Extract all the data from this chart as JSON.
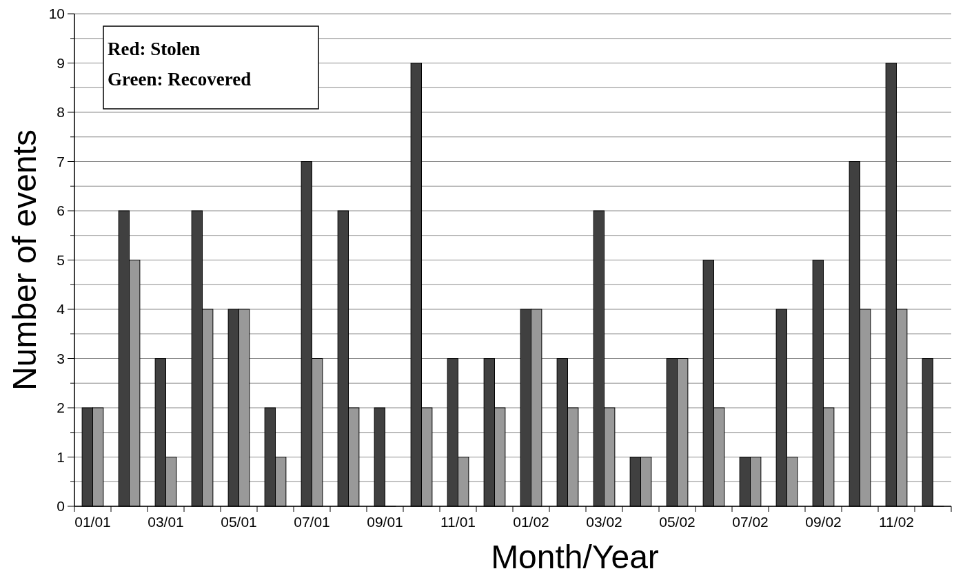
{
  "chart_data": {
    "type": "bar",
    "xlabel": "Month/Year",
    "ylabel": "Number of events",
    "categories": [
      "01/01",
      null,
      "03/01",
      null,
      "05/01",
      null,
      "07/01",
      null,
      "09/01",
      null,
      "11/01",
      null,
      "01/02",
      null,
      "03/02",
      null,
      "05/02",
      null,
      "07/02",
      null,
      "09/02",
      null,
      "11/02",
      null
    ],
    "series": [
      {
        "color": "#404040",
        "values": [
          2,
          6,
          3,
          6,
          4,
          2,
          7,
          6,
          2,
          9,
          3,
          3,
          4,
          3,
          6,
          1,
          3,
          5,
          1,
          4,
          5,
          7,
          9,
          3
        ]
      },
      {
        "color": "#999999",
        "values": [
          2,
          5,
          1,
          4,
          4,
          1,
          3,
          2,
          0,
          2,
          1,
          2,
          4,
          2,
          2,
          1,
          3,
          2,
          1,
          1,
          2,
          4,
          4,
          0
        ]
      }
    ],
    "ylim": [
      0,
      10
    ],
    "yticks": [
      0,
      {
        "value": 0.5,
        "label": null
      },
      1,
      {
        "value": 1.5,
        "label": null
      },
      2,
      {
        "value": 2.5,
        "label": null
      },
      3,
      {
        "value": 3.5,
        "label": null
      },
      4,
      {
        "value": 4.5,
        "label": null
      },
      5,
      {
        "value": 5.5,
        "label": null
      },
      6,
      {
        "value": 6.5,
        "label": null
      },
      7,
      {
        "value": 7.5,
        "label": null
      },
      8,
      {
        "value": 8.5,
        "label": null
      },
      9,
      {
        "value": 9.5,
        "label": null
      },
      10
    ],
    "grid": "y",
    "annotations": [
      "Red: Stolen",
      "Green: Recovered"
    ]
  }
}
